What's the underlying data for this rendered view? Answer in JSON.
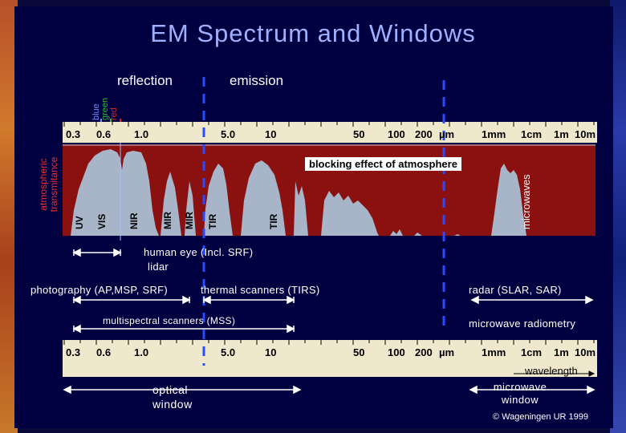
{
  "title": "EM Spectrum and Windows",
  "region_labels": {
    "reflection": "reflection",
    "emission": "emission"
  },
  "colour_labels": {
    "blue": "blue",
    "green": "green",
    "red": "red"
  },
  "ticks": [
    "0.3",
    "0.6",
    "1.0",
    "5.0",
    "10",
    "50",
    "100",
    "200",
    "µm",
    "1mm",
    "1cm",
    "1m",
    "10m"
  ],
  "transmittance_axis_label": "atmospheric transmitance",
  "blocking_label": "blocking effect of atmosphere",
  "band_labels": [
    "UV",
    "VIS",
    "NIR",
    "MIR",
    "MIR",
    "TIR",
    "TIR",
    "microwaves"
  ],
  "sensors": {
    "human_eye": "human eye (Incl. SRF)",
    "lidar": "lidar",
    "photography": "photography (AP,MSP, SRF)",
    "thermal": "thermal scanners (TIRS)",
    "radar": "radar (SLAR, SAR)",
    "mss": "multispectral scanners (MSS)",
    "radiometry": "microwave radiometry"
  },
  "wavelength_label": "wavelength",
  "optical_window": "optical window",
  "microwave_window": "microwave window",
  "copyright": "© Wageningen UR 1999",
  "colors": {
    "background": "#000040",
    "strip": "#f0e8cc",
    "transmittance_fill": "#8b1010",
    "window_fill": "#a8b4c8",
    "arrow": "#ffffff",
    "dashed_line": "#2a4aff",
    "blue": "#6a8cff",
    "green": "#2fb82f",
    "red": "#d02828"
  }
}
